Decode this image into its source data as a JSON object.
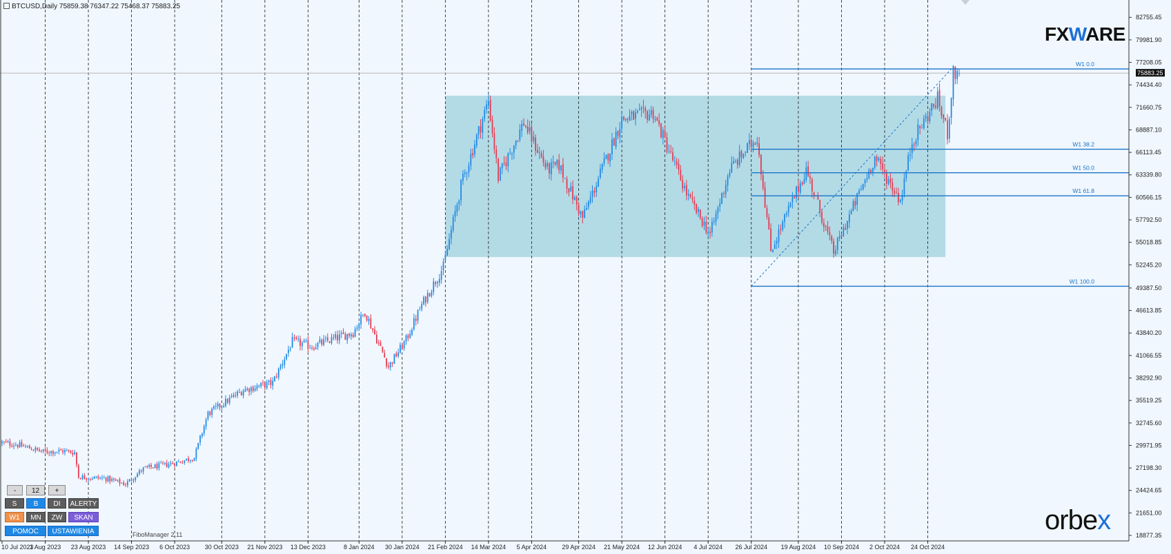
{
  "window": {
    "symbol_line": "BTCUSD,Daily  75859.38 76347.22 75468.37 75883.25",
    "indicator_name": "FiboManager 2.11"
  },
  "logos": {
    "fxware_left": "FX",
    "fxware_w": "W",
    "fxware_right": "ARE",
    "orbex_left": "orbe",
    "orbex_x": "x"
  },
  "colors": {
    "background": "#f0f7fe",
    "bull_candle": "#1e88e5",
    "bear_candle": "#e53950",
    "fib_line": "#1a73c8",
    "range_box": "#a8d6e2",
    "grid": "#1a1a1a"
  },
  "panel": {
    "minus": "-",
    "period_value": "12",
    "plus": "+",
    "s": "S",
    "b": "B",
    "di": "DI",
    "alerty": "ALERTY",
    "w1": "W1",
    "mn": "MN",
    "zw": "ZW",
    "skan": "SKAN",
    "pomoc": "POMOC",
    "ustawienia": "USTAWIENIA"
  },
  "chart_data": {
    "type": "candlestick",
    "symbol": "BTCUSD",
    "timeframe": "Daily",
    "current_price": 75883.25,
    "ohlc_last": {
      "open": 75859.38,
      "high": 76347.22,
      "low": 75468.37,
      "close": 75883.25
    },
    "y_range": [
      18200,
      84900
    ],
    "y_ticks": [
      "82755.45",
      "79981.90",
      "77208.05",
      "74434.40",
      "71660.75",
      "68887.10",
      "66113.45",
      "63339.80",
      "60566.15",
      "57792.50",
      "55018.85",
      "52245.20",
      "49387.50",
      "46613.85",
      "43840.20",
      "41066.55",
      "38292.90",
      "35519.25",
      "32745.60",
      "29971.95",
      "27198.30",
      "24424.65",
      "21651.00",
      "18877.35"
    ],
    "price_label": "75883.25",
    "x_ticks": [
      "10 Jul 2023",
      "1 Aug 2023",
      "23 Aug 2023",
      "14 Sep 2023",
      "6 Oct 2023",
      "30 Oct 2023",
      "21 Nov 2023",
      "13 Dec 2023",
      "8 Jan 2024",
      "30 Jan 2024",
      "21 Feb 2024",
      "14 Mar 2024",
      "5 Apr 2024",
      "29 Apr 2024",
      "21 May 2024",
      "12 Jun 2024",
      "4 Jul 2024",
      "26 Jul 2024",
      "19 Aug 2024",
      "10 Sep 2024",
      "2 Oct 2024",
      "24 Oct 2024"
    ],
    "x_range": [
      "2023-07-10",
      "2024-11-09"
    ],
    "grid": "vertical dashed",
    "fibonacci": {
      "levels": [
        {
          "label": "W1 0.0",
          "price": 76400
        },
        {
          "label": "W1 38.2",
          "price": 66500
        },
        {
          "label": "W1 50.0",
          "price": 63600
        },
        {
          "label": "W1 61.8",
          "price": 60750
        },
        {
          "label": "W1 100.0",
          "price": 49600
        }
      ],
      "start_date": "2024-07-26",
      "trend_line": {
        "from": [
          "2024-07-26",
          49600
        ],
        "to": [
          "2024-11-05",
          76400
        ]
      }
    },
    "range_box": {
      "from": "2024-02-21",
      "to": "2024-11-02",
      "top": 73100,
      "bottom": 53200
    },
    "anchors": [
      [
        "2023-07-10",
        30300
      ],
      [
        "2023-07-17",
        30100
      ],
      [
        "2023-07-31",
        29200
      ],
      [
        "2023-08-10",
        29300
      ],
      [
        "2023-08-16",
        29100
      ],
      [
        "2023-08-18",
        26100
      ],
      [
        "2023-09-01",
        25900
      ],
      [
        "2023-09-11",
        25200
      ],
      [
        "2023-09-20",
        27100
      ],
      [
        "2023-10-06",
        27800
      ],
      [
        "2023-10-16",
        28500
      ],
      [
        "2023-10-23",
        33900
      ],
      [
        "2023-11-10",
        36800
      ],
      [
        "2023-11-25",
        37700
      ],
      [
        "2023-12-05",
        42800
      ],
      [
        "2023-12-15",
        42200
      ],
      [
        "2024-01-05",
        43900
      ],
      [
        "2024-01-11",
        46500
      ],
      [
        "2024-01-23",
        39700
      ],
      [
        "2024-02-01",
        43000
      ],
      [
        "2024-02-09",
        47300
      ],
      [
        "2024-02-20",
        52000
      ],
      [
        "2024-02-29",
        62000
      ],
      [
        "2024-03-14",
        72500
      ],
      [
        "2024-03-19",
        63000
      ],
      [
        "2024-04-01",
        69800
      ],
      [
        "2024-04-13",
        64000
      ],
      [
        "2024-04-19",
        64500
      ],
      [
        "2024-05-01",
        58000
      ],
      [
        "2024-05-21",
        70200
      ],
      [
        "2024-06-06",
        71000
      ],
      [
        "2024-06-24",
        60500
      ],
      [
        "2024-07-05",
        56000
      ],
      [
        "2024-07-15",
        64000
      ],
      [
        "2024-07-29",
        68000
      ],
      [
        "2024-08-05",
        54000
      ],
      [
        "2024-08-23",
        64000
      ],
      [
        "2024-09-06",
        53800
      ],
      [
        "2024-09-27",
        65500
      ],
      [
        "2024-10-10",
        60200
      ],
      [
        "2024-10-16",
        67500
      ],
      [
        "2024-10-29",
        72700
      ],
      [
        "2024-11-03",
        68500
      ],
      [
        "2024-11-06",
        75800
      ],
      [
        "2024-11-09",
        75883
      ]
    ]
  }
}
